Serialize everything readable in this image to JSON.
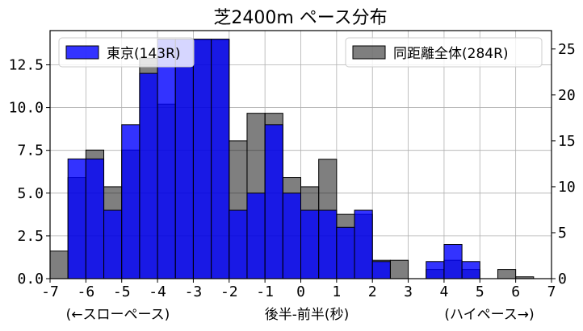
{
  "chart_data": {
    "type": "bar",
    "title": "芝2400m ペース分布",
    "xlabel": "後半-前半(秒)",
    "xlabel_left": "(←スローペース)",
    "xlabel_right": "(ハイペース→)",
    "bin_width": 0.5,
    "xlim": [
      -7,
      7
    ],
    "xticks": [
      "-7",
      "-6",
      "-5",
      "-4",
      "-3",
      "-2",
      "-1",
      "0",
      "1",
      "2",
      "3",
      "4",
      "5",
      "6",
      "7"
    ],
    "ylim_left": [
      0,
      14.5
    ],
    "yticks_left": [
      "0.0",
      "2.5",
      "5.0",
      "7.5",
      "10.0",
      "12.5"
    ],
    "ylim_right": [
      0,
      27
    ],
    "yticks_right": [
      "0",
      "5",
      "10",
      "15",
      "20",
      "25"
    ],
    "grid": true,
    "series": [
      {
        "name": "東京(143R)",
        "axis": "left",
        "color": "#0000ff",
        "legend_position": "top-left",
        "bin_starts": [
          -6.5,
          -6.0,
          -5.5,
          -5.0,
          -4.5,
          -4.0,
          -3.5,
          -3.0,
          -2.5,
          -2.0,
          -1.5,
          -1.0,
          -0.5,
          0.0,
          0.5,
          1.0,
          1.5,
          2.0,
          3.5,
          4.0,
          4.5
        ],
        "values": [
          7,
          7,
          4,
          9,
          12,
          14,
          14,
          14,
          14,
          4,
          5,
          9,
          5,
          4,
          4,
          3,
          4,
          1,
          1,
          2,
          1
        ]
      },
      {
        "name": "同距離全体(284R)",
        "axis": "right",
        "color": "#000000",
        "legend_position": "top-right",
        "bin_starts": [
          -7.0,
          -6.5,
          -6.0,
          -5.5,
          -5.0,
          -4.5,
          -4.0,
          -3.5,
          -3.0,
          -2.5,
          -2.0,
          -1.5,
          -1.0,
          -0.5,
          0.0,
          0.5,
          1.0,
          1.5,
          2.0,
          2.5,
          3.5,
          4.0,
          4.5,
          5.5,
          6.0
        ],
        "values": [
          3,
          11,
          14,
          10,
          14,
          24,
          19,
          23,
          26,
          26,
          15,
          18,
          18,
          11,
          10,
          13,
          7,
          7,
          2,
          2,
          1,
          2,
          1,
          1,
          0.2
        ]
      }
    ]
  }
}
